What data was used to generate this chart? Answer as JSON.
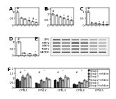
{
  "panel_A": {
    "title": "A",
    "bars": [
      1.0,
      0.55,
      0.45,
      0.35,
      0.28,
      0.22
    ],
    "errors": [
      0.07,
      0.05,
      0.04,
      0.03,
      0.03,
      0.02
    ],
    "ylim": [
      0,
      1.3
    ],
    "yticks": [
      0,
      0.5,
      1.0
    ]
  },
  "panel_B": {
    "title": "B",
    "bars": [
      1.0,
      0.9,
      0.75,
      0.65,
      0.55,
      0.45
    ],
    "errors": [
      0.08,
      0.07,
      0.06,
      0.06,
      0.05,
      0.04
    ],
    "ylim": [
      0,
      1.6
    ],
    "yticks": [
      0,
      0.5,
      1.0,
      1.5
    ]
  },
  "panel_C": {
    "title": "C",
    "bars": [
      1.0,
      0.18,
      0.14,
      0.1,
      0.08,
      0.06
    ],
    "errors": [
      0.08,
      0.02,
      0.02,
      0.01,
      0.01,
      0.01
    ],
    "ylim": [
      0,
      1.3
    ],
    "yticks": [
      0,
      0.5,
      1.0
    ]
  },
  "panel_D": {
    "title": "D",
    "bars": [
      1.0,
      0.18,
      0.14,
      0.1
    ],
    "errors": [
      0.08,
      0.02,
      0.02,
      0.01
    ],
    "ylim": [
      0,
      1.3
    ],
    "yticks": [
      0,
      0.5,
      1.0
    ]
  },
  "panel_F": {
    "title": "F",
    "groups": [
      "OPN-1",
      "OPN-2",
      "OPN-3",
      "OPN-4",
      "OPN-5"
    ],
    "series_labels": [
      "Group 1",
      "Group 1+inhibitor",
      "Group 2",
      "Group 2+inhibitor",
      "Group 3",
      "Group 3+inhibitor"
    ],
    "series_colors": [
      "#1a1a1a",
      "#4d4d4d",
      "#808080",
      "#b3b3b3",
      "#cccccc",
      "#e8e8e8"
    ],
    "values": [
      [
        0.85,
        0.45,
        0.75,
        0.35,
        0.55
      ],
      [
        0.65,
        0.35,
        0.55,
        0.25,
        0.4
      ],
      [
        1.15,
        0.75,
        0.95,
        0.55,
        0.8
      ],
      [
        0.95,
        0.6,
        0.75,
        0.45,
        0.65
      ],
      [
        1.35,
        0.95,
        1.15,
        0.75,
        1.0
      ],
      [
        1.1,
        0.85,
        0.95,
        0.65,
        0.85
      ]
    ],
    "errors": [
      [
        0.07,
        0.04,
        0.06,
        0.03,
        0.05
      ],
      [
        0.06,
        0.03,
        0.05,
        0.02,
        0.04
      ],
      [
        0.09,
        0.06,
        0.08,
        0.04,
        0.07
      ],
      [
        0.08,
        0.05,
        0.06,
        0.03,
        0.05
      ],
      [
        0.11,
        0.08,
        0.09,
        0.06,
        0.08
      ],
      [
        0.09,
        0.07,
        0.08,
        0.05,
        0.07
      ]
    ],
    "ylim": [
      0,
      2.0
    ],
    "yticks": [
      0,
      0.5,
      1.0,
      1.5,
      2.0
    ]
  },
  "wb_labels": [
    "OPN",
    "MMP2",
    "MMP9",
    "TIMP1",
    "GAPDH"
  ],
  "wb_intensities": [
    [
      0.85,
      0.75,
      0.65,
      0.55,
      0.45,
      0.35
    ],
    [
      0.65,
      0.55,
      0.8,
      0.7,
      0.45,
      0.35
    ],
    [
      0.75,
      0.65,
      0.75,
      0.65,
      0.55,
      0.45
    ],
    [
      0.55,
      0.45,
      0.65,
      0.55,
      0.35,
      0.28
    ],
    [
      0.85,
      0.85,
      0.85,
      0.85,
      0.85,
      0.85
    ]
  ],
  "bar_color": "#ffffff",
  "bar_edge": "#000000",
  "background": "#ffffff",
  "fontsize": 4,
  "tick_fontsize": 3,
  "lw": 0.35,
  "capsize": 0.8
}
